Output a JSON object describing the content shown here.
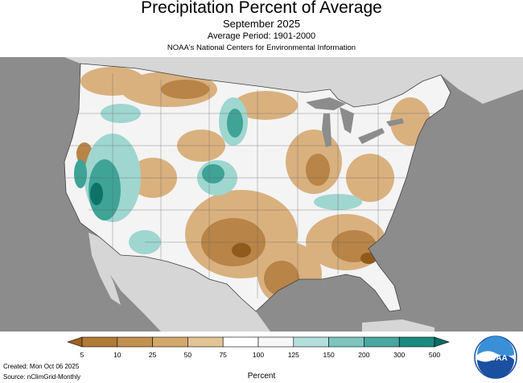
{
  "header": {
    "title": "Precipitation Percent of Average",
    "subtitle": "September 2025",
    "period": "Average Period: 1901-2000",
    "source_org": "NOAA's National Centers for Environmental Information"
  },
  "legend": {
    "unit_label": "Percent",
    "breaks": [
      "5",
      "10",
      "25",
      "50",
      "75",
      "100",
      "125",
      "150",
      "200",
      "300",
      "500"
    ],
    "colors": [
      "#9c6420",
      "#b17b35",
      "#c2914f",
      "#d2a96b",
      "#e3c495",
      "#ffffff",
      "#f7f7f7",
      "#b3e0dc",
      "#7ec5bf",
      "#49a89f",
      "#1a8a7f",
      "#0a6b61"
    ]
  },
  "footer": {
    "created": "Created: Mon Oct 06 2025",
    "source": "Source: nClimGrid-Monthly"
  },
  "logo": {
    "text": "NOAA"
  },
  "colors": {
    "ocean": "#8c8c8c",
    "land_outside": "#d6d6d6",
    "water": "#8c8c8c",
    "dry_dark": "#8f5a1c",
    "dry": "#b88447",
    "dry_light": "#d9b17f",
    "wet_light": "#9fd6d0",
    "wet": "#3fa396",
    "wet_dark": "#0f7266"
  }
}
